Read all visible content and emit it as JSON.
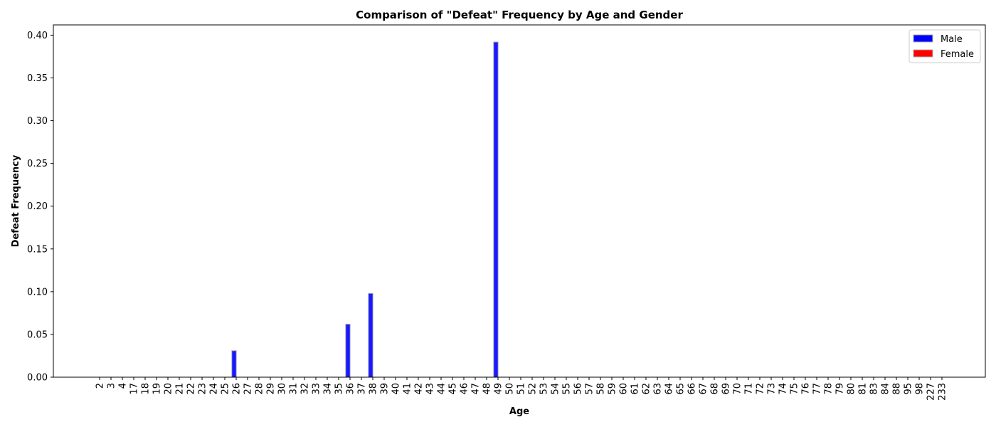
{
  "chart_data": {
    "type": "bar",
    "title": "Comparison of \"Defeat\" Frequency by Age and Gender",
    "xlabel": "Age",
    "ylabel": "Defeat Frequency",
    "categories": [
      "2",
      "3",
      "4",
      "17",
      "18",
      "19",
      "20",
      "21",
      "22",
      "23",
      "24",
      "25",
      "26",
      "27",
      "28",
      "29",
      "30",
      "31",
      "32",
      "33",
      "34",
      "35",
      "36",
      "37",
      "38",
      "39",
      "40",
      "41",
      "42",
      "43",
      "44",
      "45",
      "46",
      "47",
      "48",
      "49",
      "50",
      "51",
      "52",
      "53",
      "54",
      "55",
      "56",
      "57",
      "58",
      "59",
      "60",
      "61",
      "62",
      "63",
      "64",
      "65",
      "66",
      "67",
      "68",
      "69",
      "70",
      "71",
      "72",
      "73",
      "74",
      "75",
      "76",
      "77",
      "78",
      "79",
      "80",
      "81",
      "83",
      "84",
      "88",
      "95",
      "98",
      "227",
      "233"
    ],
    "series": [
      {
        "name": "Male",
        "color": "#0000ff",
        "values": [
          0,
          0,
          0,
          0,
          0,
          0,
          0,
          0,
          0,
          0,
          0,
          0,
          0.031,
          0,
          0,
          0,
          0,
          0,
          0,
          0,
          0,
          0,
          0.062,
          0,
          0.098,
          0,
          0,
          0,
          0,
          0,
          0,
          0,
          0,
          0,
          0,
          0.392,
          0,
          0,
          0,
          0,
          0,
          0,
          0,
          0,
          0,
          0,
          0,
          0,
          0,
          0,
          0,
          0,
          0,
          0,
          0,
          0,
          0,
          0,
          0,
          0,
          0,
          0,
          0,
          0,
          0,
          0,
          0,
          0,
          0,
          0,
          0,
          0,
          0,
          0,
          0
        ]
      },
      {
        "name": "Female",
        "color": "#ff0000",
        "values": [
          0,
          0,
          0,
          0,
          0,
          0,
          0,
          0,
          0,
          0,
          0,
          0,
          0,
          0,
          0,
          0,
          0,
          0,
          0,
          0,
          0,
          0,
          0,
          0,
          0,
          0,
          0,
          0,
          0,
          0,
          0,
          0,
          0,
          0,
          0,
          0,
          0,
          0,
          0,
          0,
          0,
          0,
          0,
          0,
          0,
          0,
          0,
          0,
          0,
          0,
          0,
          0,
          0,
          0,
          0,
          0,
          0,
          0,
          0,
          0,
          0,
          0,
          0,
          0,
          0,
          0,
          0,
          0,
          0,
          0,
          0,
          0,
          0,
          0,
          0
        ]
      }
    ],
    "yticks": [
      "0.00",
      "0.05",
      "0.10",
      "0.15",
      "0.20",
      "0.25",
      "0.30",
      "0.35",
      "0.40"
    ],
    "ylim": [
      0,
      0.412
    ],
    "legend_position": "top-right",
    "grid": false
  }
}
